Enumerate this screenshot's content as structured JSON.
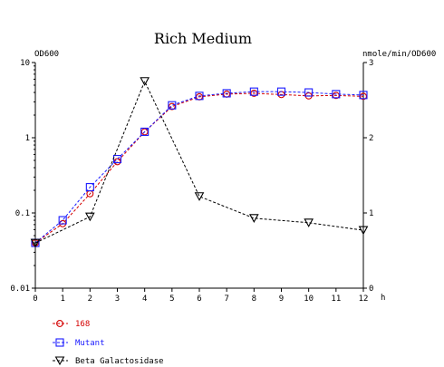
{
  "chart_data": {
    "type": "line",
    "title": "Rich Medium",
    "x_unit": "h",
    "left_axis": {
      "label": "OD600",
      "scale": "log",
      "range": [
        0.01,
        10
      ],
      "ticks": [
        "10",
        "1",
        "0.1",
        "0.01"
      ]
    },
    "right_axis": {
      "label": "nmole/min/OD600",
      "scale": "linear",
      "range": [
        0,
        3
      ],
      "ticks": [
        "3",
        "2",
        "1",
        "0"
      ]
    },
    "x_ticks": [
      "0",
      "1",
      "2",
      "3",
      "4",
      "5",
      "6",
      "7",
      "8",
      "9",
      "10",
      "11",
      "12"
    ],
    "x_range": [
      0,
      12
    ],
    "legend_placement": "bottom-left",
    "series": [
      {
        "name": "168",
        "axis": "left",
        "color": "#d40000",
        "marker": "circle",
        "x": [
          0,
          1,
          2,
          3,
          4,
          5,
          6,
          7,
          8,
          9,
          10,
          11,
          12
        ],
        "y": [
          0.04,
          0.072,
          0.18,
          0.48,
          1.2,
          2.6,
          3.5,
          3.8,
          3.9,
          3.75,
          3.6,
          3.65,
          3.55
        ]
      },
      {
        "name": "Mutant",
        "axis": "left",
        "color": "#1a1aff",
        "marker": "square",
        "x": [
          0,
          1,
          2,
          3,
          4,
          5,
          6,
          7,
          8,
          9,
          10,
          11,
          12
        ],
        "y": [
          0.04,
          0.08,
          0.22,
          0.52,
          1.2,
          2.7,
          3.6,
          3.9,
          4.1,
          4.1,
          4.0,
          3.8,
          3.7
        ]
      },
      {
        "name": "Beta Galactosidase",
        "axis": "right",
        "color": "#000000",
        "marker": "triangle-down",
        "x": [
          0,
          2,
          4,
          6,
          8,
          10,
          12
        ],
        "y": [
          0.6,
          0.95,
          2.75,
          1.22,
          0.93,
          0.87,
          0.77
        ]
      }
    ]
  }
}
